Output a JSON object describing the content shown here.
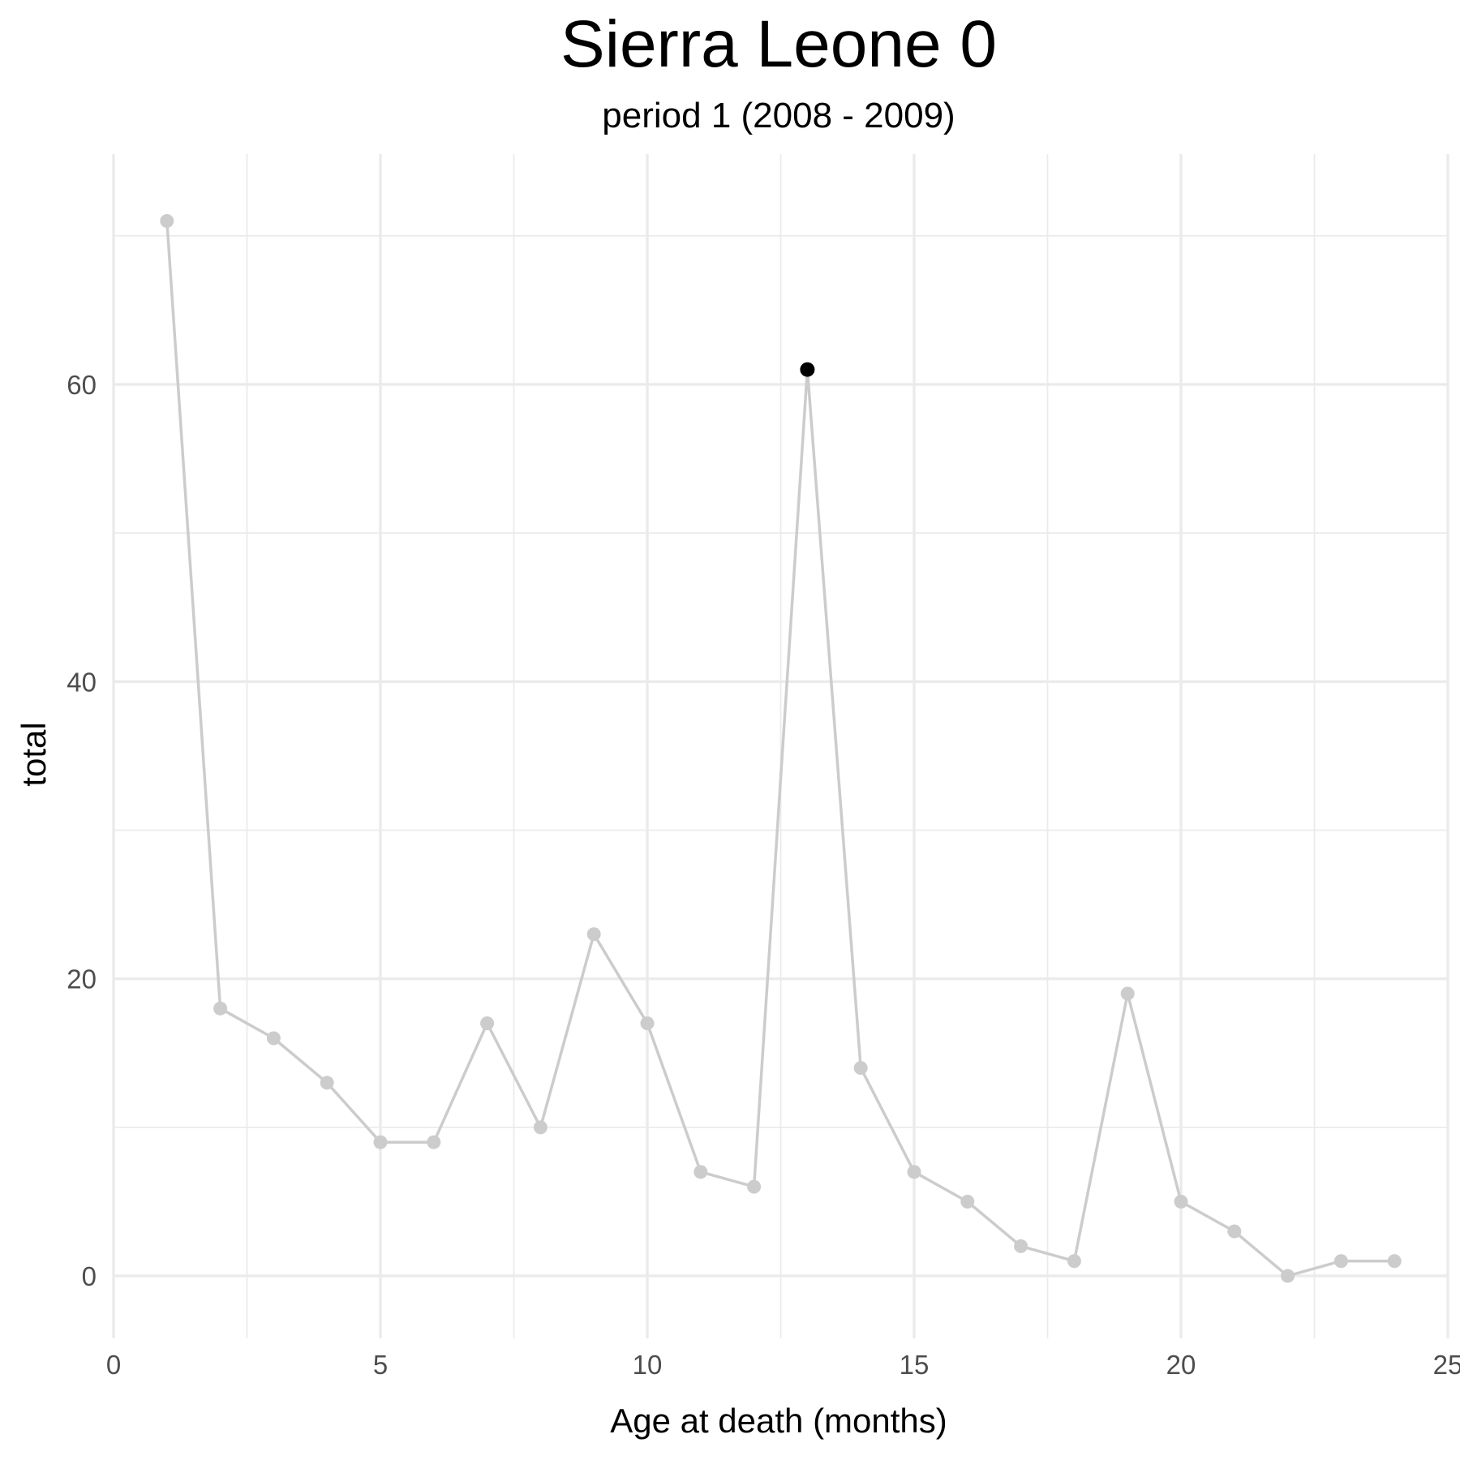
{
  "chart_data": {
    "type": "line",
    "title": "Sierra Leone 0",
    "subtitle": "period 1 (2008 - 2009)",
    "xlabel": "Age at death (months)",
    "ylabel": "total",
    "xlim": [
      0,
      25
    ],
    "ylim": [
      -4.2,
      75.5
    ],
    "x_ticks": [
      0,
      5,
      10,
      15,
      20,
      25
    ],
    "x_tick_labels": [
      "0",
      "5",
      "10",
      "15",
      "20",
      "25"
    ],
    "y_ticks": [
      0,
      20,
      40,
      60
    ],
    "y_tick_labels": [
      "0",
      "20",
      "40",
      "60"
    ],
    "x_minor_ticks": [
      2.5,
      7.5,
      12.5,
      17.5,
      22.5
    ],
    "y_minor_ticks": [
      10,
      30,
      50,
      70
    ],
    "grid": true,
    "legend": "none",
    "series": [
      {
        "x": [
          1,
          2,
          3,
          4,
          5,
          6,
          7,
          8,
          9,
          10,
          11,
          12,
          13,
          14,
          15,
          16,
          17,
          18,
          19,
          20,
          21,
          22,
          23,
          24
        ],
        "values": [
          71,
          18,
          16,
          13,
          9,
          9,
          17,
          10,
          23,
          17,
          7,
          6,
          61,
          14,
          7,
          5,
          2,
          1,
          19,
          5,
          3,
          0,
          1,
          1
        ],
        "color": "#cccccc"
      }
    ],
    "highlight": {
      "x": 13,
      "y": 61,
      "color": "#000000"
    }
  }
}
